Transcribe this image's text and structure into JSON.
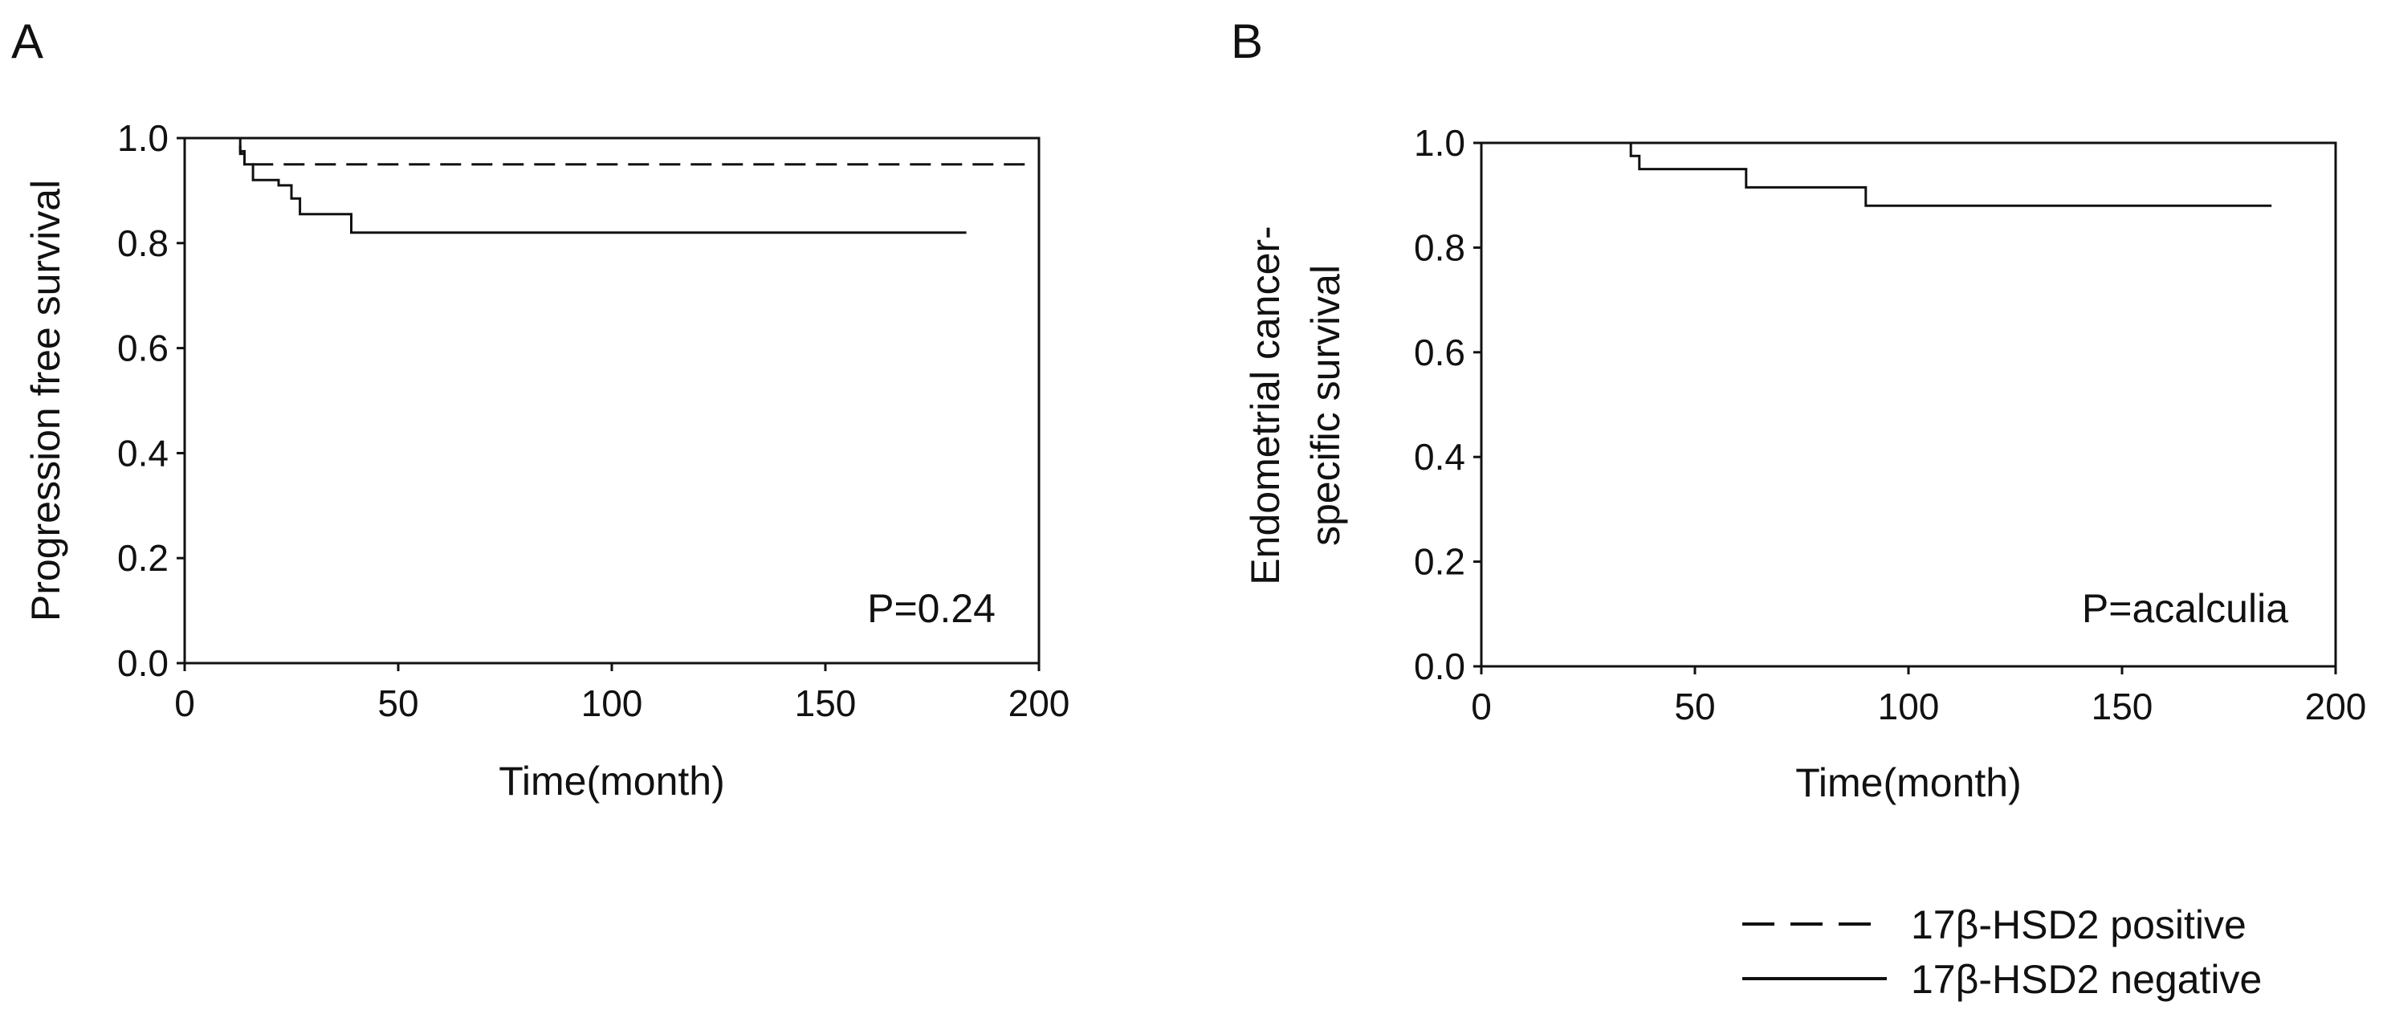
{
  "chart_data": [
    {
      "type": "line",
      "panel_label": "A",
      "xlabel": "Time(month)",
      "ylabel": "Progression free survival",
      "xlim": [
        0,
        200
      ],
      "ylim": [
        0,
        1.0
      ],
      "xticks": [
        "0",
        "50",
        "100",
        "150",
        "200"
      ],
      "yticks": [
        "0.0",
        "0.2",
        "0.4",
        "0.6",
        "0.8",
        "1.0"
      ],
      "annotation": "P=0.24",
      "grid": false,
      "series": [
        {
          "key": "positive",
          "style": "dashed",
          "x": [
            0,
            12,
            13,
            14,
            197
          ],
          "y": [
            1.0,
            1.0,
            0.97,
            0.95,
            0.95
          ]
        },
        {
          "key": "negative",
          "style": "solid",
          "x": [
            0,
            12,
            13,
            14,
            16,
            22,
            25,
            27,
            39,
            183
          ],
          "y": [
            1.0,
            1.0,
            0.975,
            0.95,
            0.92,
            0.91,
            0.885,
            0.855,
            0.82,
            0.82
          ]
        }
      ]
    },
    {
      "type": "line",
      "panel_label": "B",
      "xlabel": "Time(month)",
      "ylabel": [
        "Endometrial cancer-",
        "specific survival"
      ],
      "xlim": [
        0,
        200
      ],
      "ylim": [
        0,
        1.0
      ],
      "xticks": [
        "0",
        "50",
        "100",
        "150",
        "200"
      ],
      "yticks": [
        "0.0",
        "0.2",
        "0.4",
        "0.6",
        "0.8",
        "1.0"
      ],
      "annotation": "P=acalculia",
      "grid": false,
      "series": [
        {
          "key": "positive",
          "style": "dashed",
          "x": [
            0,
            197
          ],
          "y": [
            1.0,
            1.0
          ]
        },
        {
          "key": "negative",
          "style": "solid",
          "x": [
            0,
            33,
            35,
            37,
            62,
            90,
            185
          ],
          "y": [
            1.0,
            1.0,
            0.975,
            0.95,
            0.915,
            0.88,
            0.88
          ]
        }
      ]
    }
  ],
  "legend": {
    "placement": "bottom-right",
    "items": [
      {
        "key": "positive",
        "label": "17β-HSD2 positive",
        "style": "dashed"
      },
      {
        "key": "negative",
        "label": "17β-HSD2 negative",
        "style": "solid"
      }
    ]
  }
}
